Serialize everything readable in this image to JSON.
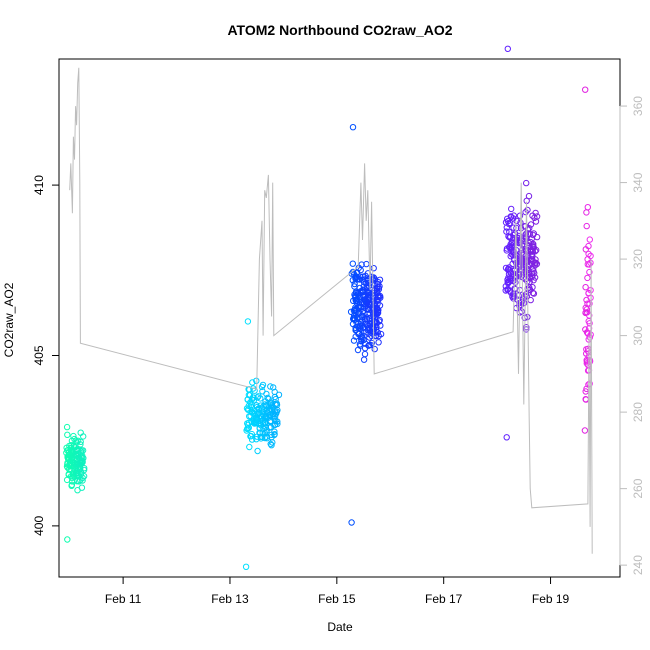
{
  "chart_data": {
    "type": "scatter",
    "title": "ATOM2 Northbound CO2raw_AO2",
    "xlabel": "Date",
    "ylabel": "CO2raw_AO2",
    "y2label": "",
    "x_ticks": [
      {
        "label": "Feb 11",
        "day": 11
      },
      {
        "label": "Feb 13",
        "day": 13
      },
      {
        "label": "Feb 15",
        "day": 15
      },
      {
        "label": "Feb 17",
        "day": 17
      },
      {
        "label": "Feb 19",
        "day": 19
      }
    ],
    "xlim": [
      9.8,
      20.3
    ],
    "ylim": [
      398.5,
      413.7
    ],
    "y_ticks": [
      400,
      405,
      410
    ],
    "y2lim": [
      236.9,
      372.3
    ],
    "y2_ticks": [
      240,
      260,
      280,
      300,
      320,
      340,
      360
    ],
    "grid": false,
    "legend": "none",
    "colors": {
      "points_start": "#1affb0",
      "points_mid": "#1e90ff",
      "points_end": "#e020e0",
      "line": "#bdbdbd"
    },
    "clusters": [
      {
        "x_center": 10.1,
        "x_spread": 0.16,
        "y_center": 401.9,
        "y_spread": 0.7,
        "n": 140,
        "y_min": 399.6,
        "y_max": 402.9,
        "color_from": "#10ffb0",
        "color_to": "#10f0c0"
      },
      {
        "x_center": 13.6,
        "x_spread": 0.28,
        "y_center": 403.2,
        "y_spread": 0.85,
        "n": 170,
        "y_min": 398.8,
        "y_max": 406.0,
        "color_from": "#00e0ff",
        "color_to": "#00b0ff"
      },
      {
        "x_center": 15.55,
        "x_spread": 0.26,
        "y_center": 406.4,
        "y_spread": 1.35,
        "n": 260,
        "y_min": 400.1,
        "y_max": 411.7,
        "color_from": "#0050ff",
        "color_to": "#2030ff"
      },
      {
        "x_center": 18.45,
        "x_spread": 0.28,
        "y_center": 407.8,
        "y_spread": 1.6,
        "n": 240,
        "y_min": 402.6,
        "y_max": 414.0,
        "color_from": "#6020ff",
        "color_to": "#8020e0"
      },
      {
        "x_center": 19.7,
        "x_spread": 0.05,
        "y_center": 406.5,
        "y_spread": 2.8,
        "n": 60,
        "y_min": 402.8,
        "y_max": 412.8,
        "color_from": "#e020e0",
        "color_to": "#f030f0"
      }
    ],
    "secondary_line": [
      [
        10.0,
        338
      ],
      [
        10.02,
        345
      ],
      [
        10.05,
        332
      ],
      [
        10.07,
        352
      ],
      [
        10.09,
        346
      ],
      [
        10.11,
        360
      ],
      [
        10.13,
        355
      ],
      [
        10.15,
        366
      ],
      [
        10.17,
        370
      ],
      [
        10.19,
        340
      ],
      [
        10.2,
        298
      ],
      [
        13.5,
        286
      ],
      [
        13.55,
        320
      ],
      [
        13.6,
        330
      ],
      [
        13.62,
        300
      ],
      [
        13.65,
        338
      ],
      [
        13.68,
        336
      ],
      [
        13.72,
        342
      ],
      [
        13.75,
        320
      ],
      [
        13.78,
        305
      ],
      [
        13.8,
        340
      ],
      [
        13.82,
        300
      ],
      [
        15.4,
        318
      ],
      [
        15.45,
        340
      ],
      [
        15.48,
        325
      ],
      [
        15.52,
        345
      ],
      [
        15.55,
        330
      ],
      [
        15.58,
        338
      ],
      [
        15.62,
        312
      ],
      [
        15.65,
        335
      ],
      [
        15.7,
        290
      ],
      [
        18.3,
        301
      ],
      [
        18.35,
        330
      ],
      [
        18.4,
        290
      ],
      [
        18.45,
        340
      ],
      [
        18.5,
        282
      ],
      [
        18.55,
        335
      ],
      [
        18.6,
        278
      ],
      [
        18.62,
        260
      ],
      [
        18.65,
        255
      ],
      [
        19.7,
        256
      ],
      [
        19.72,
        300
      ],
      [
        19.74,
        250
      ],
      [
        19.76,
        320
      ],
      [
        19.78,
        243
      ]
    ]
  }
}
